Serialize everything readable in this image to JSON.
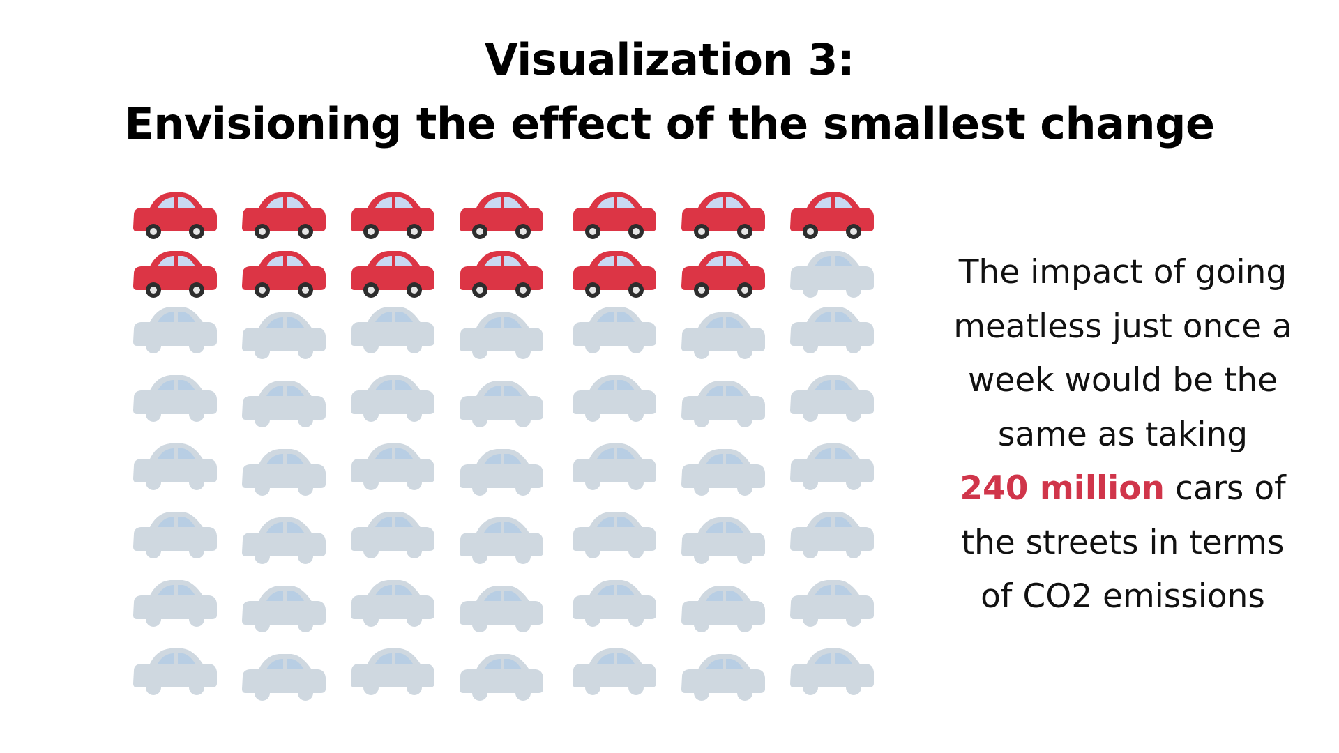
{
  "title": {
    "line1": "Visualization 3:",
    "line2": "Envisioning the effect of the smallest change"
  },
  "caption": {
    "line1": "The impact of going",
    "line2": "meatless just once a",
    "line3": "week would be the",
    "line4": "same as taking",
    "highlight": "240 million",
    "line5_rest": " cars of",
    "line6": "the streets in terms",
    "line7": "of CO2 emissions"
  },
  "chart_data": {
    "type": "pictograph",
    "icon": "car-icon",
    "columns": 7,
    "rows": 8,
    "total_icons": 56,
    "highlighted_icons": 13,
    "colors": {
      "highlighted": "#dc3545",
      "faded": "#cfd8e0",
      "highlight_text": "#d0354a"
    }
  }
}
